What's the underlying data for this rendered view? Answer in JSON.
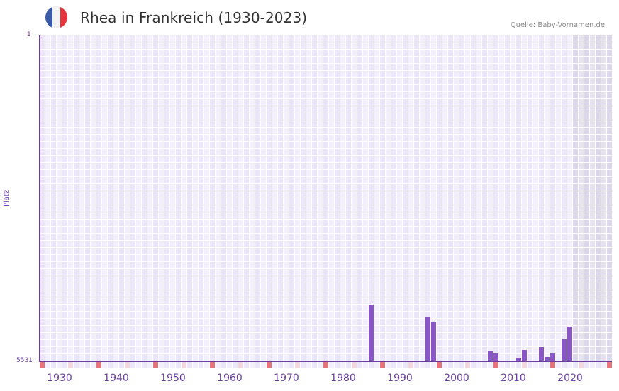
{
  "header": {
    "title": "Rhea in Frankreich (1930-2023)",
    "source": "Quelle: Baby-Vornamen.de",
    "flag": {
      "name": "france-flag-icon",
      "colors": [
        "#3a5aa8",
        "#f2f2f2",
        "#e8343d"
      ]
    }
  },
  "axes": {
    "y_top_label": "1",
    "y_bottom_label": "5531",
    "y_title": "Platz",
    "x_labels": [
      "1930",
      "1940",
      "1950",
      "1960",
      "1970",
      "1980",
      "1990",
      "2000",
      "2010",
      "2020"
    ]
  },
  "colors": {
    "bar": "#8a55c4",
    "axis": "#6b3fa0",
    "grid_bg_a": "#f3effc",
    "grid_bg_b": "#ece6f8",
    "grid_line": "#ffffff",
    "future_shade": "#e2dced",
    "decade_marker": "#e5737a",
    "half_decade_marker": "#f3d6e0"
  },
  "chart_data": {
    "type": "bar",
    "title": "Rhea in Frankreich (1930-2023)",
    "subtitle": "Quelle: Baby-Vornamen.de",
    "xlabel": "",
    "ylabel": "Platz",
    "ylim": [
      5531,
      1
    ],
    "y_inverted": true,
    "x_range": [
      1928,
      2028
    ],
    "x_ticks": [
      1930,
      1940,
      1950,
      1960,
      1970,
      1980,
      1990,
      2000,
      2010,
      2020
    ],
    "grid": true,
    "legend": null,
    "shaded_region_from_year": 2022,
    "categories": [
      1986,
      1996,
      1997,
      2007,
      2008,
      2012,
      2013,
      2016,
      2017,
      2018,
      2020,
      2021
    ],
    "values": [
      4569,
      4786,
      4870,
      5363,
      5399,
      5471,
      5339,
      5291,
      5459,
      5399,
      5158,
      4942
    ]
  }
}
